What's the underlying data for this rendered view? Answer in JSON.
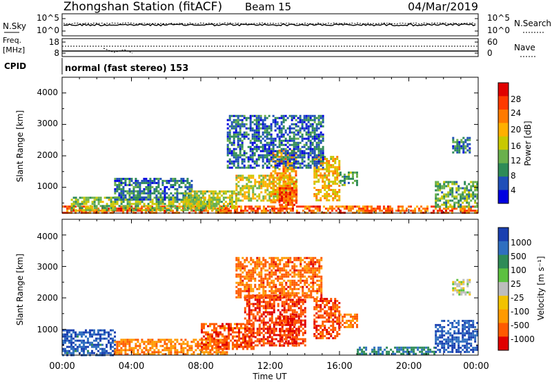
{
  "header": {
    "station": "Zhongshan Station (fitACF)",
    "beam": "Beam 15",
    "date": "04/Mar/2019"
  },
  "noise_panel": {
    "left_label": "N.Sky",
    "right_label": "N.Search",
    "left_ticks": [
      "10^5",
      "10^0"
    ],
    "right_ticks": [
      "10^5",
      "10^0"
    ]
  },
  "freq_panel": {
    "left_label_line1": "Freq.",
    "left_label_line2": "[MHz]",
    "right_label": "Nave",
    "left_ticks": [
      "18",
      "8"
    ],
    "right_ticks": [
      "60",
      "0"
    ],
    "cpid_label": "CPID",
    "cpid_text": "normal (fast stereo) 153"
  },
  "x_ticks": [
    "00:00",
    "04:00",
    "08:00",
    "12:00",
    "16:00",
    "20:00",
    "00:00"
  ],
  "x_axis_label": "Time UT",
  "y_ticks": [
    "4000",
    "3000",
    "2000",
    "1000"
  ],
  "y_axis_label": "Slant Range [km]",
  "power_colorbar": {
    "label": "Power [dB]",
    "ticks": [
      "28",
      "24",
      "20",
      "16",
      "12",
      "8",
      "4"
    ],
    "colors": [
      "#e00000",
      "#ff3a00",
      "#ff7a00",
      "#ffb000",
      "#c8c800",
      "#6ab04c",
      "#2e8b57",
      "#1f4fb8",
      "#0000e0"
    ]
  },
  "velocity_colorbar": {
    "label": "Velocity [m s⁻¹]",
    "ticks": [
      "1000",
      "500",
      "100",
      "25",
      "-25",
      "-100",
      "-500",
      "-1000"
    ],
    "colors": [
      "#1a3fb0",
      "#2f6fc0",
      "#2e8b57",
      "#5cc040",
      "#bdbdbd",
      "#f2c200",
      "#ff9a00",
      "#ff5a00",
      "#e00000"
    ]
  },
  "chart_data": [
    {
      "type": "heatmap",
      "quantity": "Power",
      "unit": "dB",
      "x_range_hours": [
        0,
        24
      ],
      "y_range_km": [
        180,
        4500
      ],
      "color_range": [
        0,
        30
      ],
      "regions": [
        {
          "t0": 0.0,
          "t1": 24.0,
          "r0": 200,
          "r1": 420,
          "level": 24
        },
        {
          "t0": 0.5,
          "t1": 9.0,
          "r0": 300,
          "r1": 700,
          "level": 12
        },
        {
          "t0": 3.0,
          "t1": 7.5,
          "r0": 600,
          "r1": 1300,
          "level": 6
        },
        {
          "t0": 7.0,
          "t1": 10.0,
          "r0": 350,
          "r1": 900,
          "level": 14
        },
        {
          "t0": 10.0,
          "t1": 13.5,
          "r0": 600,
          "r1": 1400,
          "level": 16
        },
        {
          "t0": 12.0,
          "t1": 13.5,
          "r0": 500,
          "r1": 2200,
          "level": 20
        },
        {
          "t0": 12.5,
          "t1": 13.5,
          "r0": 450,
          "r1": 1000,
          "level": 26
        },
        {
          "t0": 14.5,
          "t1": 16.0,
          "r0": 600,
          "r1": 2000,
          "level": 18
        },
        {
          "t0": 16.0,
          "t1": 17.0,
          "r0": 1100,
          "r1": 1500,
          "level": 10
        },
        {
          "t0": 9.5,
          "t1": 15.0,
          "r0": 1600,
          "r1": 3300,
          "level": 5
        },
        {
          "t0": 21.5,
          "t1": 24.0,
          "r0": 350,
          "r1": 1200,
          "level": 10
        },
        {
          "t0": 22.5,
          "t1": 23.5,
          "r0": 2100,
          "r1": 2600,
          "level": 6
        }
      ]
    },
    {
      "type": "heatmap",
      "quantity": "Velocity",
      "unit": "m/s",
      "x_range_hours": [
        0,
        24
      ],
      "y_range_km": [
        180,
        4500
      ],
      "color_range": [
        -1000,
        1000
      ],
      "regions": [
        {
          "t0": 0.0,
          "t1": 3.0,
          "r0": 200,
          "r1": 1000,
          "level": 300
        },
        {
          "t0": 3.0,
          "t1": 9.5,
          "r0": 200,
          "r1": 700,
          "level": -60
        },
        {
          "t0": 8.0,
          "t1": 11.0,
          "r0": 400,
          "r1": 1200,
          "level": -200
        },
        {
          "t0": 10.5,
          "t1": 14.0,
          "r0": 500,
          "r1": 2100,
          "level": -300
        },
        {
          "t0": 12.5,
          "t1": 13.5,
          "r0": 500,
          "r1": 1500,
          "level": -600
        },
        {
          "t0": 14.5,
          "t1": 16.0,
          "r0": 700,
          "r1": 2000,
          "level": -250
        },
        {
          "t0": 16.0,
          "t1": 17.0,
          "r0": 1100,
          "r1": 1500,
          "level": -80
        },
        {
          "t0": 10.0,
          "t1": 15.0,
          "r0": 2000,
          "r1": 3300,
          "level": -120
        },
        {
          "t0": 17.0,
          "t1": 21.5,
          "r0": 200,
          "r1": 450,
          "level": 60
        },
        {
          "t0": 21.5,
          "t1": 24.0,
          "r0": 300,
          "r1": 1300,
          "level": 400
        },
        {
          "t0": 22.5,
          "t1": 23.5,
          "r0": 2100,
          "r1": 2600,
          "level": 0
        }
      ]
    }
  ]
}
